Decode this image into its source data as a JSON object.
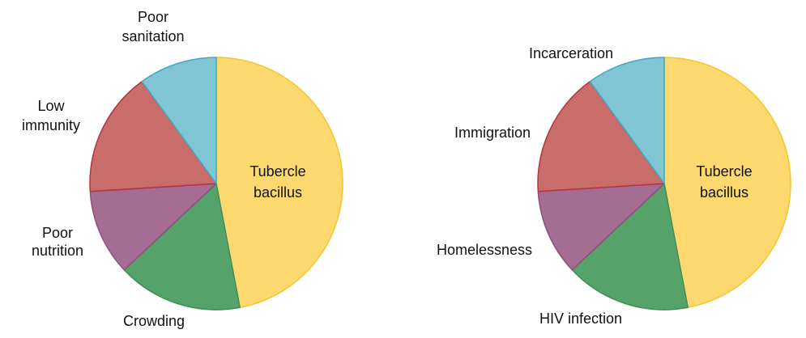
{
  "chart_data": [
    {
      "type": "pie",
      "title": "",
      "slices": [
        {
          "label": "Tubercle bacillus",
          "lines": [
            "Tubercle",
            "bacillus"
          ],
          "value": 47,
          "color": "#FDD86E",
          "stroke": "#F2C62E"
        },
        {
          "label": "Crowding",
          "lines": [
            "Crowding"
          ],
          "value": 16,
          "color": "#55A36B",
          "stroke": "#3F8F55"
        },
        {
          "label": "Poor nutrition",
          "lines": [
            "Poor",
            "nutrition"
          ],
          "value": 11,
          "color": "#A56D94",
          "stroke": "#8D4F7D"
        },
        {
          "label": "Low immunity",
          "lines": [
            "Low",
            "immunity"
          ],
          "value": 16,
          "color": "#C96D6A",
          "stroke": "#B8333F"
        },
        {
          "label": "Poor sanitation",
          "lines": [
            "Poor",
            "sanitation"
          ],
          "value": 10,
          "color": "#80C5D3",
          "stroke": "#3FA8C4"
        }
      ],
      "start_angle_deg": 0,
      "direction": "clockwise"
    },
    {
      "type": "pie",
      "title": "",
      "slices": [
        {
          "label": "Tubercle bacillus",
          "lines": [
            "Tubercle",
            "bacillus"
          ],
          "value": 47,
          "color": "#FDD86E",
          "stroke": "#F2C62E"
        },
        {
          "label": "HIV infection",
          "lines": [
            "HIV infection"
          ],
          "value": 16,
          "color": "#55A36B",
          "stroke": "#3F8F55"
        },
        {
          "label": "Homelessness",
          "lines": [
            "Homelessness"
          ],
          "value": 11,
          "color": "#A56D94",
          "stroke": "#8D4F7D"
        },
        {
          "label": "Immigration",
          "lines": [
            "Immigration"
          ],
          "value": 16,
          "color": "#C96D6A",
          "stroke": "#B8333F"
        },
        {
          "label": "Incarceration",
          "lines": [
            "Incarceration"
          ],
          "value": 10,
          "color": "#80C5D3",
          "stroke": "#3FA8C4"
        }
      ],
      "start_angle_deg": 0,
      "direction": "clockwise"
    }
  ]
}
